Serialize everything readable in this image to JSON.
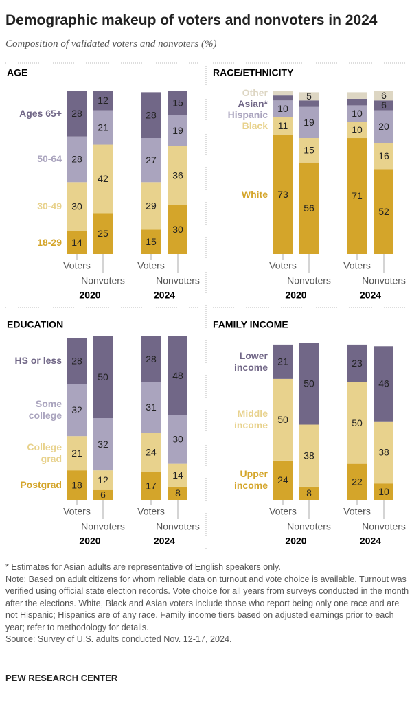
{
  "title": "Demographic makeup of voters and nonvoters in 2024",
  "subtitle": "Composition of validated voters and nonvoters (%)",
  "chart_data": [
    {
      "type": "bar",
      "stacked": true,
      "title": "AGE",
      "categories": [
        "Voters",
        "Nonvoters",
        "Voters",
        "Nonvoters"
      ],
      "groups": [
        "2020",
        "2024"
      ],
      "series": [
        {
          "name": "18-29",
          "color": "#d4a52a",
          "values": [
            14,
            25,
            15,
            30
          ]
        },
        {
          "name": "30-49",
          "color": "#e8d28d",
          "values": [
            30,
            42,
            29,
            36
          ]
        },
        {
          "name": "50-64",
          "color": "#aaa4be",
          "values": [
            28,
            21,
            27,
            19
          ]
        },
        {
          "name": "Ages 65+",
          "color": "#716787",
          "values": [
            28,
            12,
            28,
            15
          ]
        }
      ]
    },
    {
      "type": "bar",
      "stacked": true,
      "title": "RACE/ETHNICITY",
      "categories": [
        "Voters",
        "Nonvoters",
        "Voters",
        "Nonvoters"
      ],
      "groups": [
        "2020",
        "2024"
      ],
      "series": [
        {
          "name": "White",
          "color": "#d4a52a",
          "values": [
            73,
            56,
            71,
            52
          ]
        },
        {
          "name": "Black",
          "color": "#e8d28d",
          "values": [
            11,
            15,
            10,
            16
          ]
        },
        {
          "name": "Hispanic",
          "color": "#aaa4be",
          "values": [
            10,
            19,
            10,
            20
          ]
        },
        {
          "name": "Asian*",
          "color": "#716787",
          "values": [
            3,
            4,
            4,
            6
          ]
        },
        {
          "name": "Other",
          "color": "#ddd6c3",
          "values": [
            3,
            5,
            4,
            6
          ]
        }
      ]
    },
    {
      "type": "bar",
      "stacked": true,
      "title": "EDUCATION",
      "categories": [
        "Voters",
        "Nonvoters",
        "Voters",
        "Nonvoters"
      ],
      "groups": [
        "2020",
        "2024"
      ],
      "series": [
        {
          "name": "Postgrad",
          "color": "#d4a52a",
          "values": [
            18,
            6,
            17,
            8
          ]
        },
        {
          "name": "College grad",
          "color": "#e8d28d",
          "values": [
            21,
            12,
            24,
            14
          ]
        },
        {
          "name": "Some college",
          "color": "#aaa4be",
          "values": [
            32,
            32,
            31,
            30
          ]
        },
        {
          "name": "HS or less",
          "color": "#716787",
          "values": [
            28,
            50,
            28,
            48
          ]
        }
      ]
    },
    {
      "type": "bar",
      "stacked": true,
      "title": "FAMILY INCOME",
      "categories": [
        "Voters",
        "Nonvoters",
        "Voters",
        "Nonvoters"
      ],
      "groups": [
        "2020",
        "2024"
      ],
      "series": [
        {
          "name": "Upper income",
          "color": "#d4a52a",
          "values": [
            24,
            8,
            22,
            10
          ]
        },
        {
          "name": "Middle income",
          "color": "#e8d28d",
          "values": [
            50,
            38,
            50,
            38
          ]
        },
        {
          "name": "Lower income",
          "color": "#716787",
          "values": [
            21,
            50,
            23,
            46
          ]
        }
      ]
    }
  ],
  "notes": [
    "* Estimates for Asian adults are representative of English speakers only.",
    "Note: Based on adult citizens for whom reliable data on turnout and vote choice is available. Turnout was verified using official state election records. Vote choice for all years from surveys conducted in the month after the elections. White, Black and Asian voters include those who report being only one race and are not Hispanic; Hispanics are of any race. Family income tiers based on adjusted earnings prior to each year; refer to methodology for details.",
    "Source: Survey of U.S. adults conducted Nov. 12-17, 2024."
  ],
  "brand": "PEW RESEARCH CENTER"
}
